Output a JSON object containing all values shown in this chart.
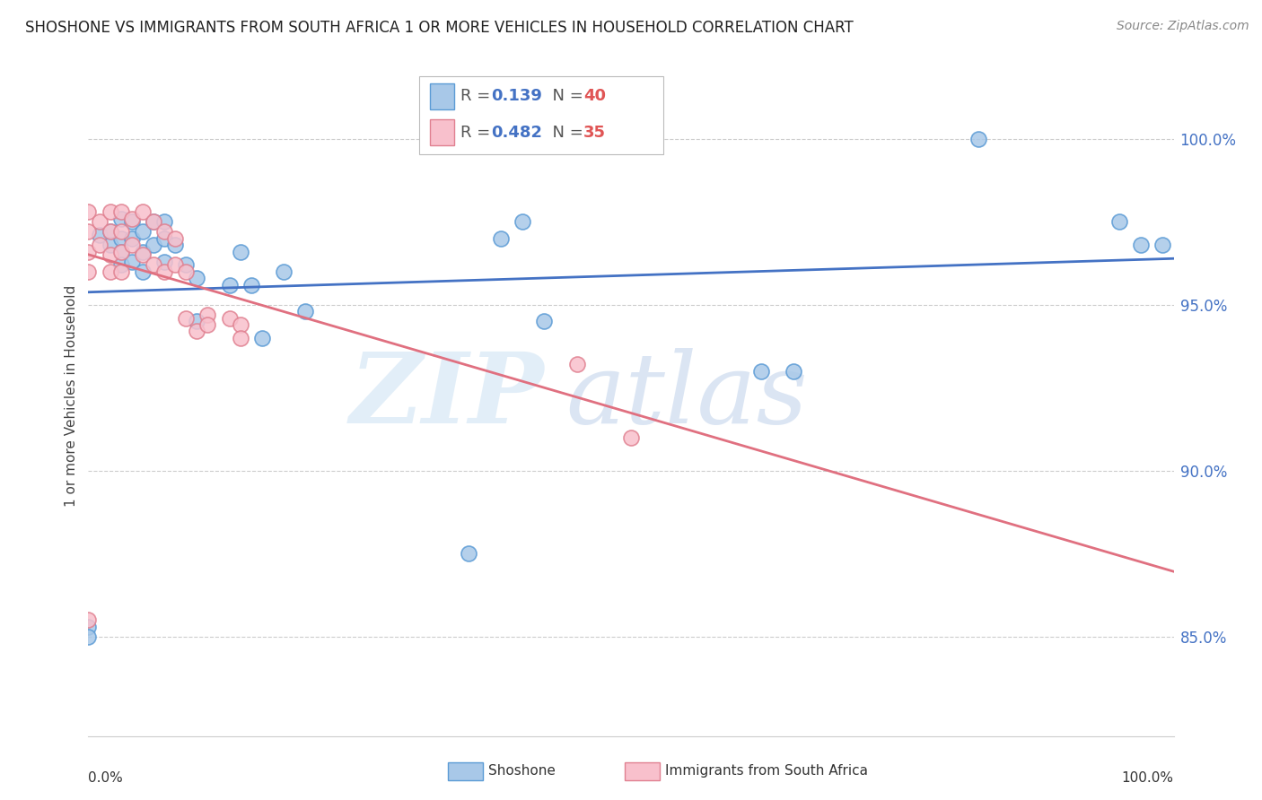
{
  "title": "SHOSHONE VS IMMIGRANTS FROM SOUTH AFRICA 1 OR MORE VEHICLES IN HOUSEHOLD CORRELATION CHART",
  "source": "Source: ZipAtlas.com",
  "ylabel": "1 or more Vehicles in Household",
  "xlim": [
    0.0,
    1.0
  ],
  "ylim": [
    0.82,
    1.025
  ],
  "yticks": [
    0.85,
    0.9,
    0.95,
    1.0
  ],
  "ytick_labels": [
    "85.0%",
    "90.0%",
    "95.0%",
    "100.0%"
  ],
  "blue_scatter_color": "#a8c8e8",
  "blue_scatter_edge": "#5b9bd5",
  "pink_scatter_color": "#f8c0cc",
  "pink_scatter_edge": "#e08090",
  "blue_line_color": "#4472c4",
  "pink_line_color": "#e07080",
  "legend_r1": "R =  0.139",
  "legend_n1": "N = 40",
  "legend_r2": "R =  0.482",
  "legend_n2": "N = 35",
  "watermark_zip_color": "#c8ddf0",
  "watermark_atlas_color": "#b0c8e8",
  "shoshone_x": [
    0.0,
    0.0,
    0.01,
    0.02,
    0.02,
    0.03,
    0.03,
    0.03,
    0.03,
    0.04,
    0.04,
    0.04,
    0.05,
    0.05,
    0.05,
    0.06,
    0.06,
    0.07,
    0.07,
    0.07,
    0.08,
    0.09,
    0.1,
    0.1,
    0.13,
    0.14,
    0.15,
    0.16,
    0.18,
    0.2,
    0.35,
    0.38,
    0.4,
    0.42,
    0.62,
    0.65,
    0.82,
    0.95,
    0.97,
    0.99
  ],
  "shoshone_y": [
    0.853,
    0.85,
    0.971,
    0.972,
    0.968,
    0.976,
    0.97,
    0.966,
    0.962,
    0.975,
    0.97,
    0.963,
    0.972,
    0.966,
    0.96,
    0.975,
    0.968,
    0.975,
    0.97,
    0.963,
    0.968,
    0.962,
    0.958,
    0.945,
    0.956,
    0.966,
    0.956,
    0.94,
    0.96,
    0.948,
    0.875,
    0.97,
    0.975,
    0.945,
    0.93,
    0.93,
    1.0,
    0.975,
    0.968,
    0.968
  ],
  "africa_x": [
    0.0,
    0.0,
    0.0,
    0.0,
    0.0,
    0.01,
    0.01,
    0.02,
    0.02,
    0.02,
    0.02,
    0.03,
    0.03,
    0.03,
    0.03,
    0.04,
    0.04,
    0.05,
    0.05,
    0.06,
    0.06,
    0.07,
    0.07,
    0.08,
    0.08,
    0.09,
    0.09,
    0.1,
    0.11,
    0.11,
    0.13,
    0.14,
    0.14,
    0.45,
    0.5
  ],
  "africa_y": [
    0.978,
    0.972,
    0.966,
    0.96,
    0.855,
    0.975,
    0.968,
    0.978,
    0.972,
    0.965,
    0.96,
    0.978,
    0.972,
    0.966,
    0.96,
    0.976,
    0.968,
    0.978,
    0.965,
    0.975,
    0.962,
    0.972,
    0.96,
    0.97,
    0.962,
    0.96,
    0.946,
    0.942,
    0.947,
    0.944,
    0.946,
    0.944,
    0.94,
    0.932,
    0.91
  ]
}
